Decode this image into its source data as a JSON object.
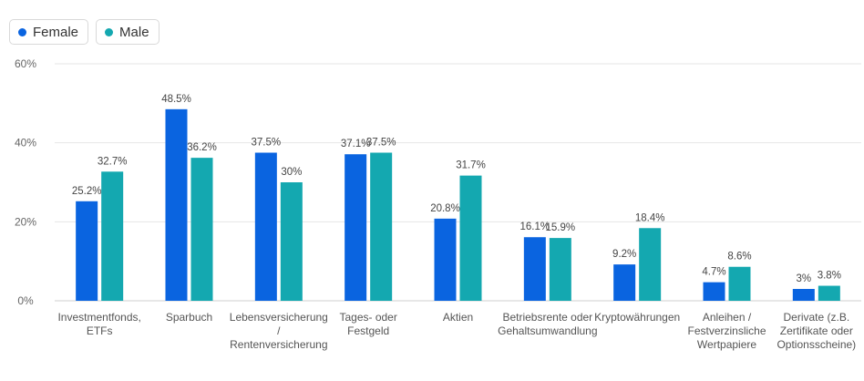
{
  "legend": {
    "items": [
      {
        "label": "Female",
        "color": "#0a64e0"
      },
      {
        "label": "Male",
        "color": "#14a8b0"
      }
    ]
  },
  "chart_data": {
    "type": "bar",
    "categories": [
      [
        "Investmentfonds,",
        "ETFs"
      ],
      [
        "Sparbuch"
      ],
      [
        "Lebensversicherung",
        "/",
        "Rentenversicherung"
      ],
      [
        "Tages- oder",
        "Festgeld"
      ],
      [
        "Aktien"
      ],
      [
        "Betriebsrente oder",
        "Gehaltsumwandlung"
      ],
      [
        "Kryptowährungen"
      ],
      [
        "Anleihen /",
        "Festverzinsliche",
        "Wertpapiere"
      ],
      [
        "Derivate (z.B.",
        "Zertifikate oder",
        "Optionsscheine)"
      ]
    ],
    "series": [
      {
        "name": "Female",
        "color": "#0a64e0",
        "values": [
          25.2,
          48.5,
          37.5,
          37.1,
          20.8,
          16.1,
          9.2,
          4.7,
          3.0
        ],
        "labels": [
          "25.2%",
          "48.5%",
          "37.5%",
          "37.1%",
          "20.8%",
          "16.1%",
          "9.2%",
          "4.7%",
          "3%"
        ]
      },
      {
        "name": "Male",
        "color": "#14a8b0",
        "values": [
          32.7,
          36.2,
          30.0,
          37.5,
          31.7,
          15.9,
          18.4,
          8.6,
          3.8
        ],
        "labels": [
          "32.7%",
          "36.2%",
          "30%",
          "37.5%",
          "31.7%",
          "15.9%",
          "18.4%",
          "8.6%",
          "3.8%"
        ]
      }
    ],
    "yticks": [
      0,
      20,
      40,
      60
    ],
    "ytick_labels": [
      "0%",
      "20%",
      "40%",
      "60%"
    ],
    "ylim": [
      0,
      60
    ],
    "grid": true,
    "legend_position": "top-left"
  }
}
